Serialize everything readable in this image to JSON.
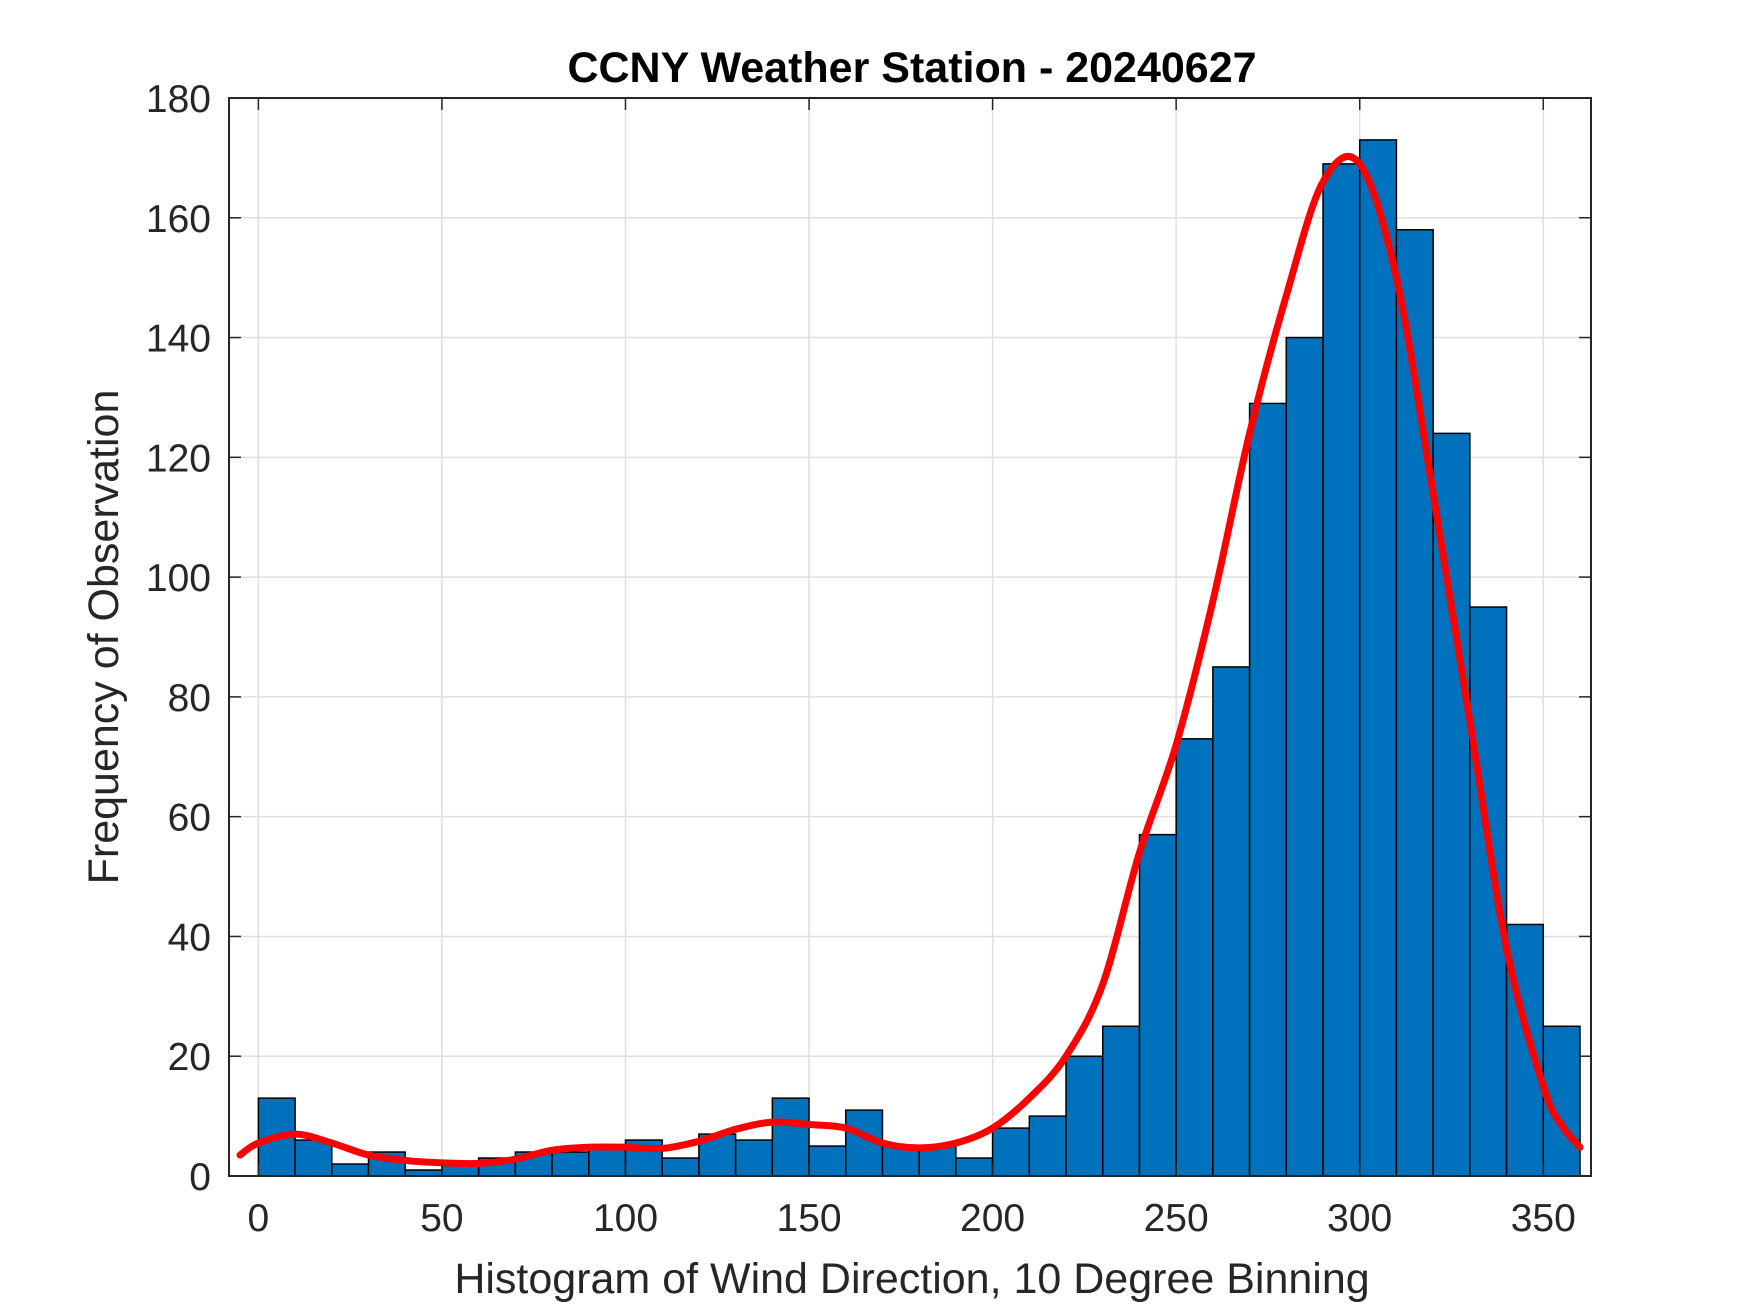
{
  "chart_data": {
    "type": "bar",
    "title": "CCNY Weather Station - 20240627",
    "xlabel": "Histogram of Wind Direction, 10 Degree Binning",
    "ylabel": "Frequency of Observation",
    "xlim": [
      -8,
      363
    ],
    "ylim": [
      0,
      180
    ],
    "xticks": [
      0,
      50,
      100,
      150,
      200,
      250,
      300,
      350
    ],
    "yticks": [
      0,
      20,
      40,
      60,
      80,
      100,
      120,
      140,
      160,
      180
    ],
    "grid": true,
    "bin_width": 10,
    "bin_edges": [
      0,
      10,
      20,
      30,
      40,
      50,
      60,
      70,
      80,
      90,
      100,
      110,
      120,
      130,
      140,
      150,
      160,
      170,
      180,
      190,
      200,
      210,
      220,
      230,
      240,
      250,
      260,
      270,
      280,
      290,
      300,
      310,
      320,
      330,
      340,
      350,
      360
    ],
    "values": [
      13,
      6,
      2,
      4,
      1,
      2,
      3,
      4,
      4,
      5,
      6,
      3,
      7,
      6,
      13,
      5,
      11,
      5,
      5,
      3,
      8,
      10,
      20,
      25,
      57,
      73,
      85,
      129,
      140,
      169,
      173,
      158,
      124,
      95,
      42,
      25
    ],
    "fit_curve": {
      "x": [
        -5,
        0,
        10,
        20,
        30,
        40,
        50,
        60,
        70,
        80,
        90,
        100,
        110,
        120,
        130,
        140,
        150,
        160,
        170,
        180,
        190,
        200,
        210,
        220,
        230,
        240,
        250,
        260,
        270,
        280,
        290,
        300,
        310,
        320,
        330,
        340,
        350,
        355,
        360
      ],
      "y": [
        3.5,
        5.5,
        7,
        5.5,
        3.5,
        2.6,
        2.2,
        2.1,
        2.8,
        4.3,
        4.8,
        4.8,
        4.6,
        5.8,
        7.8,
        9,
        8.6,
        8,
        5.5,
        4.7,
        5.5,
        8,
        13,
        20,
        32,
        54,
        72,
        96,
        124,
        147,
        166,
        169,
        150,
        114,
        76,
        38,
        15,
        8.5,
        4.8
      ]
    },
    "colors": {
      "bar": "#0072bd",
      "fit": "#ff0000"
    }
  }
}
